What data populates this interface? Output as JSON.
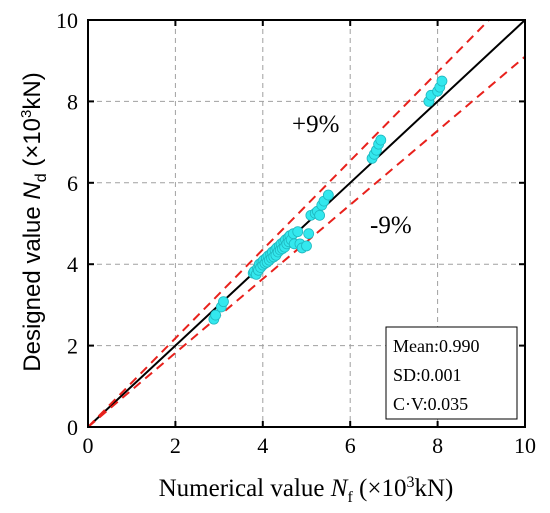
{
  "chart_data": {
    "type": "scatter",
    "xlabel": {
      "pre": "Numerical value ",
      "sym": "N",
      "sub": "f",
      "unit_pre": " (×10",
      "sup": "3",
      "unit_post": "kN)"
    },
    "ylabel": {
      "pre": "Designed value ",
      "sym": "N",
      "sub": "d",
      "unit_pre": " (×10",
      "sup": "3",
      "unit_post": "kN)"
    },
    "xlim": [
      0,
      10
    ],
    "ylim": [
      0,
      10
    ],
    "xticks": [
      0,
      2,
      4,
      6,
      8,
      10
    ],
    "yticks": [
      0,
      2,
      4,
      6,
      8,
      10
    ],
    "grid": true,
    "reference_lines": [
      {
        "name": "y=x",
        "slope": 1.0,
        "style": "solid",
        "color": "#000000"
      },
      {
        "name": "+9%",
        "slope": 1.09,
        "style": "dashed",
        "color": "#e8211c"
      },
      {
        "name": "-9%",
        "slope": 0.91,
        "style": "dashed",
        "color": "#e8211c"
      }
    ],
    "annotations": [
      {
        "text": "+9%",
        "x": 5.3,
        "y": 7.2
      },
      {
        "text": "-9%",
        "x": 6.4,
        "y": 4.85
      }
    ],
    "stats_box": [
      "Mean:0.990",
      "SD:0.001",
      "C·V:0.035"
    ],
    "marker_color": "#33e8ee",
    "series": [
      {
        "x": [
          2.88,
          2.92,
          3.05,
          3.1,
          3.78,
          3.8,
          3.85,
          3.88,
          3.9,
          3.92,
          3.95,
          3.98,
          4.0,
          4.02,
          4.05,
          4.08,
          4.1,
          4.12,
          4.15,
          4.18,
          4.2,
          4.22,
          4.25,
          4.28,
          4.3,
          4.32,
          4.35,
          4.38,
          4.4,
          4.42,
          4.45,
          4.48,
          4.5,
          4.52,
          4.55,
          4.58,
          4.6,
          4.62,
          4.65,
          4.7,
          4.72,
          4.8,
          4.85,
          4.9,
          5.0,
          5.05,
          5.1,
          5.2,
          5.25,
          5.3,
          5.35,
          5.4,
          5.5,
          6.5,
          6.55,
          6.6,
          6.65,
          6.7,
          7.8,
          7.85,
          8.0,
          8.05,
          8.1
        ],
        "y": [
          2.65,
          2.75,
          2.95,
          3.08,
          3.78,
          3.82,
          3.75,
          3.9,
          3.85,
          4.0,
          3.92,
          4.05,
          3.98,
          4.1,
          4.02,
          4.15,
          4.05,
          4.2,
          4.1,
          4.25,
          4.15,
          4.3,
          4.18,
          4.35,
          4.22,
          4.4,
          4.3,
          4.45,
          4.35,
          4.5,
          4.38,
          4.55,
          4.42,
          4.6,
          4.5,
          4.65,
          4.55,
          4.7,
          4.6,
          4.75,
          4.5,
          4.8,
          4.5,
          4.4,
          4.45,
          4.75,
          5.2,
          5.25,
          5.3,
          5.2,
          5.45,
          5.55,
          5.7,
          6.6,
          6.7,
          6.8,
          6.95,
          7.05,
          8.0,
          8.15,
          8.25,
          8.35,
          8.5
        ]
      }
    ]
  }
}
